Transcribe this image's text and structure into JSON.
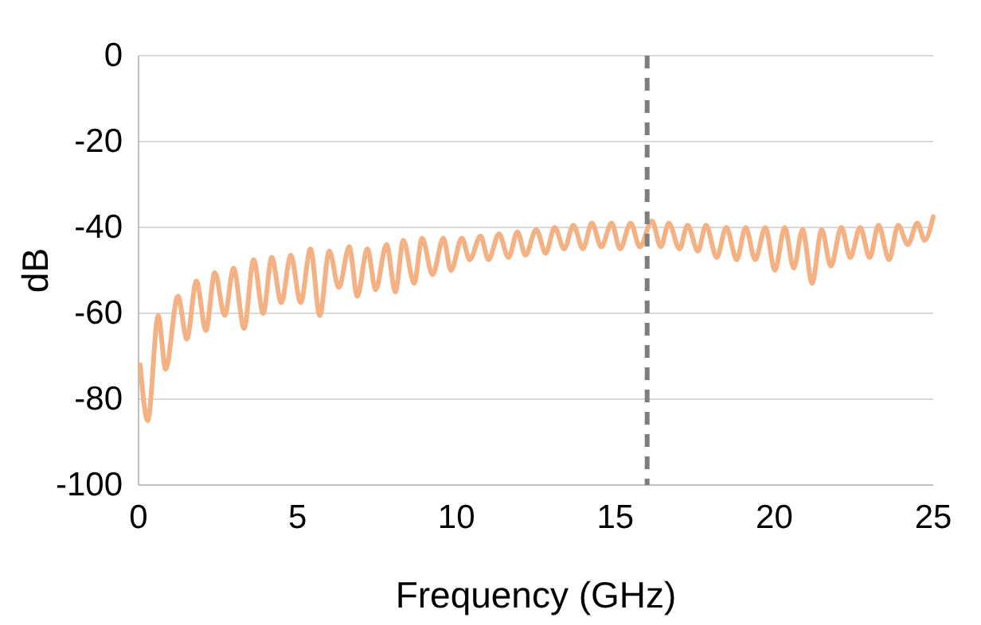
{
  "chart_data": {
    "type": "line",
    "xlabel": "Frequency (GHz)",
    "ylabel": "dB",
    "xlim": [
      0,
      25
    ],
    "ylim": [
      -100,
      0
    ],
    "xticks": [
      0,
      5,
      10,
      15,
      20,
      25
    ],
    "yticks": [
      -100,
      -80,
      -60,
      -40,
      -20,
      0
    ],
    "grid": "y",
    "marker": "none",
    "line_style": "solid",
    "ref_lines": [
      {
        "axis": "x",
        "value": 16,
        "color": "#7f7f7f",
        "line_style": "dashed"
      }
    ],
    "series": [
      {
        "color": "#f4b183",
        "x": [
          0.05,
          0.29,
          0.62,
          0.85,
          1.24,
          1.52,
          1.82,
          2.12,
          2.4,
          2.71,
          2.99,
          3.32,
          3.62,
          3.92,
          4.19,
          4.49,
          4.79,
          5.1,
          5.41,
          5.7,
          6.0,
          6.3,
          6.63,
          6.88,
          7.2,
          7.46,
          7.8,
          8.08,
          8.33,
          8.67,
          8.92,
          9.25,
          9.59,
          9.83,
          10.17,
          10.42,
          10.76,
          11.01,
          11.34,
          11.64,
          11.92,
          12.17,
          12.51,
          12.81,
          13.09,
          13.39,
          13.68,
          13.98,
          14.26,
          14.56,
          14.88,
          15.15,
          15.48,
          15.77,
          16.15,
          16.43,
          16.68,
          17.02,
          17.27,
          17.6,
          17.85,
          18.19,
          18.49,
          18.82,
          19.1,
          19.4,
          19.72,
          20.02,
          20.33,
          20.61,
          20.89,
          21.19,
          21.49,
          21.78,
          22.11,
          22.39,
          22.7,
          23.0,
          23.28,
          23.61,
          23.9,
          24.2,
          24.5,
          24.73,
          25
        ],
        "values": [
          -72,
          -85,
          -60.5,
          -73,
          -56,
          -66,
          -52.5,
          -64,
          -50.5,
          -60.5,
          -49.5,
          -63.5,
          -47.5,
          -60,
          -47,
          -57.5,
          -46.5,
          -57.5,
          -45,
          -60.5,
          -45.5,
          -54,
          -44.5,
          -56,
          -45,
          -54.5,
          -44,
          -55,
          -43,
          -53,
          -42.5,
          -51,
          -42.5,
          -50,
          -42.5,
          -47.5,
          -42,
          -47.5,
          -41.5,
          -47,
          -41,
          -46.5,
          -40.5,
          -46,
          -40,
          -45,
          -39.5,
          -45,
          -39,
          -44.5,
          -39,
          -45,
          -39,
          -44.5,
          -38.5,
          -44.5,
          -39,
          -45,
          -39.5,
          -45.5,
          -39.5,
          -47,
          -40,
          -47.5,
          -40,
          -47.5,
          -40,
          -50,
          -40,
          -49.5,
          -40.5,
          -53,
          -40.5,
          -49,
          -40,
          -47,
          -40,
          -47,
          -39.5,
          -47.5,
          -39.5,
          -44,
          -39,
          -43,
          -37.5
        ]
      }
    ]
  }
}
